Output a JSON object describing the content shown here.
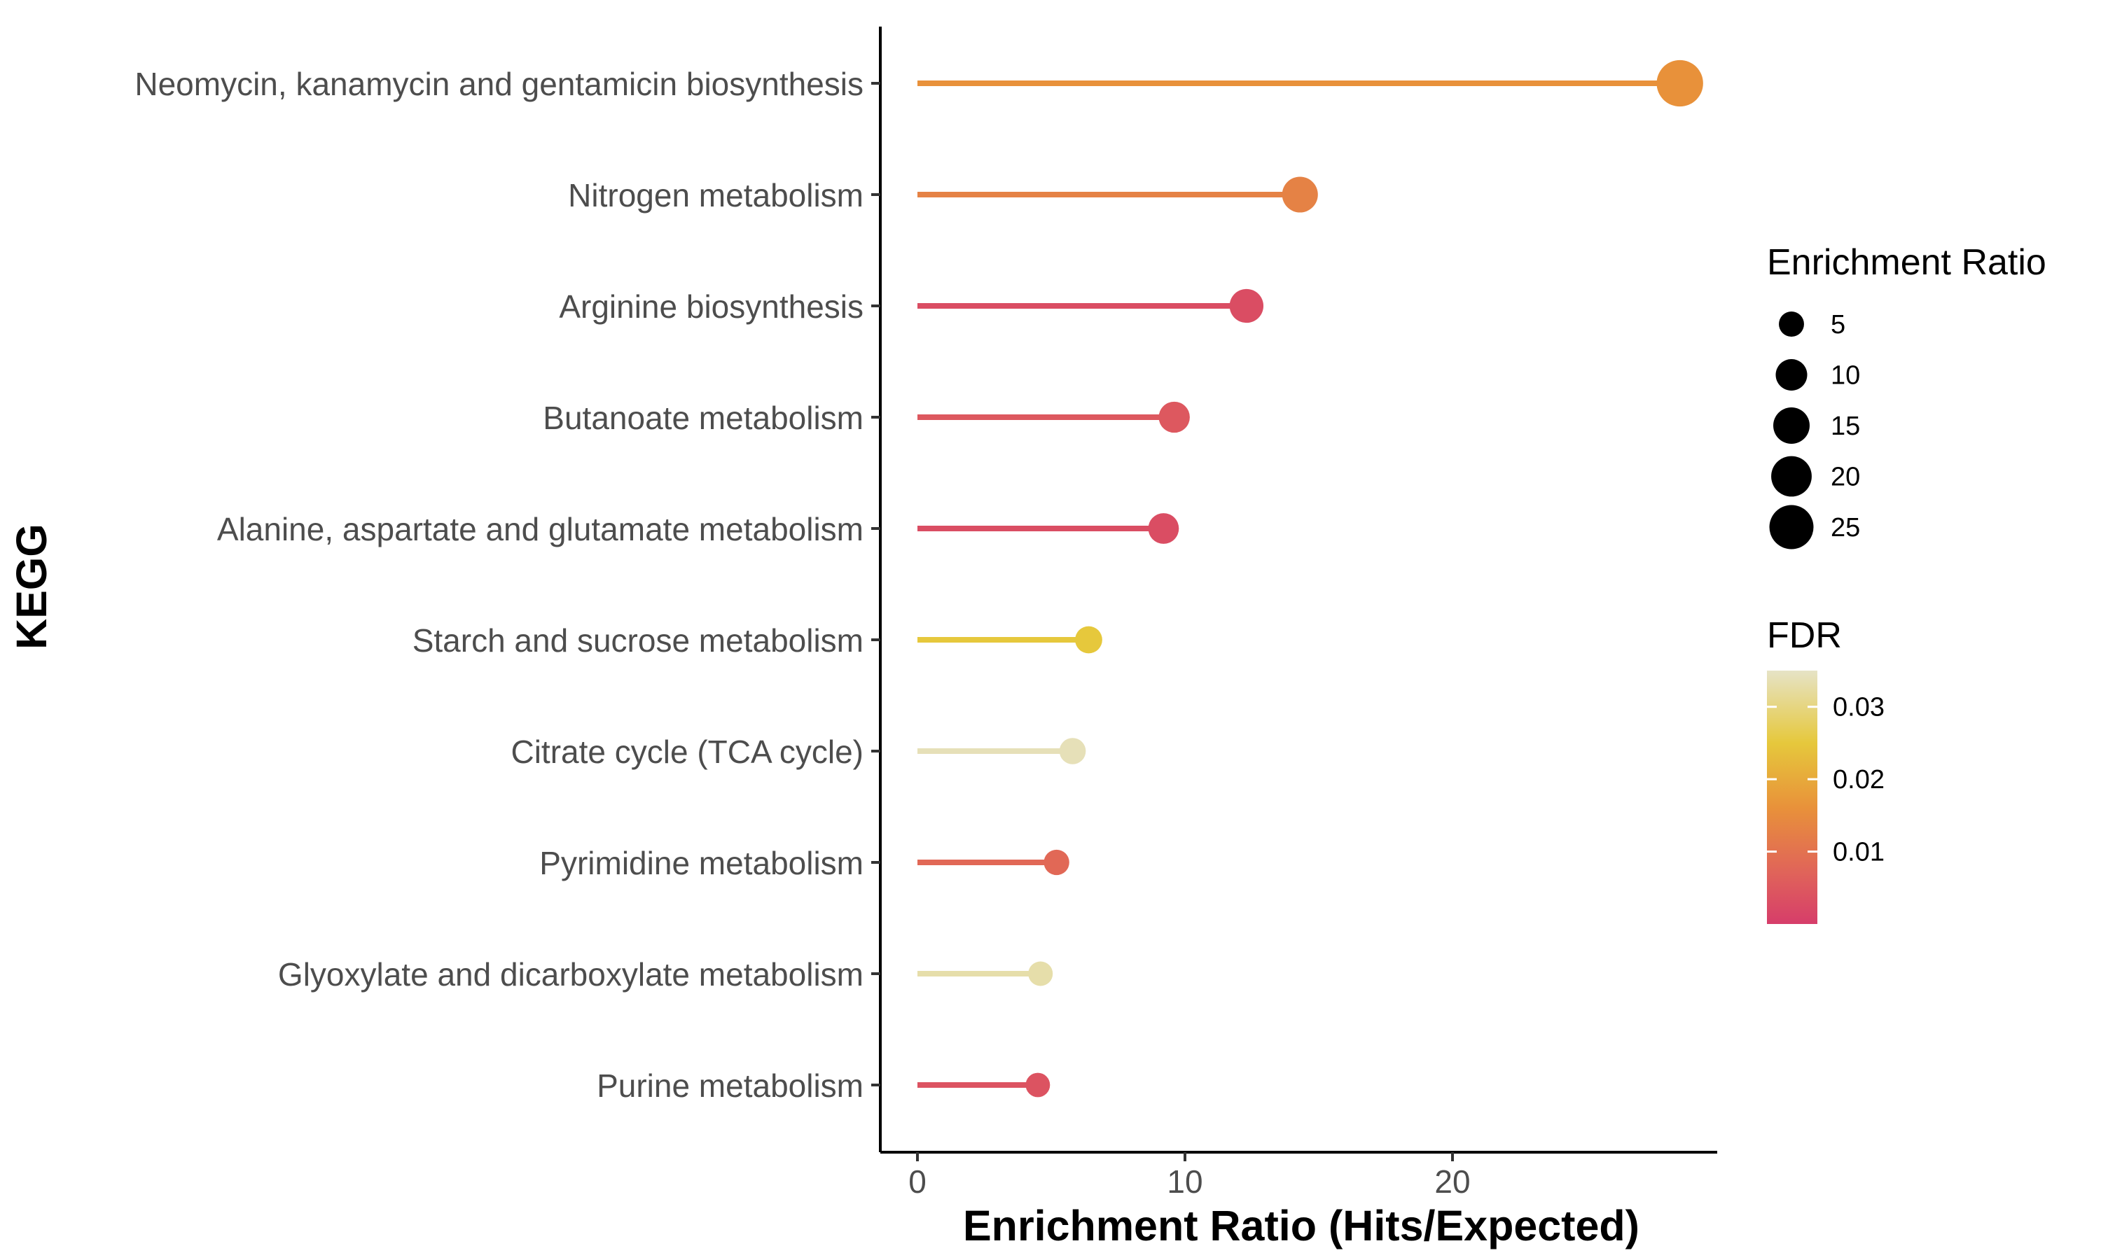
{
  "chart_data": {
    "type": "lollipop",
    "xlabel": "Enrichment Ratio (Hits/Expected)",
    "ylabel": "KEGG",
    "xlim": [
      -1.4,
      30
    ],
    "xticks": [
      0,
      10,
      20
    ],
    "grid": false,
    "categories": [
      "Neomycin, kanamycin and gentamicin biosynthesis",
      "Nitrogen metabolism",
      "Arginine biosynthesis",
      "Butanoate metabolism",
      "Alanine, aspartate and glutamate metabolism",
      "Starch and sucrose metabolism",
      "Citrate cycle (TCA cycle)",
      "Pyrimidine metabolism",
      "Glyoxylate and dicarboxylate metabolism",
      "Purine metabolism"
    ],
    "values": [
      28.5,
      14.3,
      12.3,
      9.6,
      9.2,
      6.4,
      5.8,
      5.2,
      4.6,
      4.5
    ],
    "fdr": [
      0.016,
      0.013,
      0.003,
      0.005,
      0.003,
      0.025,
      0.034,
      0.008,
      0.033,
      0.004
    ],
    "size_legend": {
      "title": "Enrichment Ratio",
      "values": [
        5,
        10,
        15,
        20,
        25
      ],
      "labels": [
        "5",
        "10",
        "15",
        "20",
        "25"
      ]
    },
    "color_legend": {
      "title": "FDR",
      "range": [
        0,
        0.035
      ],
      "ticks": [
        0.01,
        0.02,
        0.03
      ],
      "tick_labels": [
        "0.01",
        "0.02",
        "0.03"
      ],
      "color_stops": [
        {
          "value": 0.0,
          "color": "#d63d6a"
        },
        {
          "value": 0.007,
          "color": "#e0635a"
        },
        {
          "value": 0.016,
          "color": "#e8913a"
        },
        {
          "value": 0.025,
          "color": "#e6c83c"
        },
        {
          "value": 0.035,
          "color": "#e6e3c6"
        }
      ]
    },
    "legend_position": "right"
  }
}
